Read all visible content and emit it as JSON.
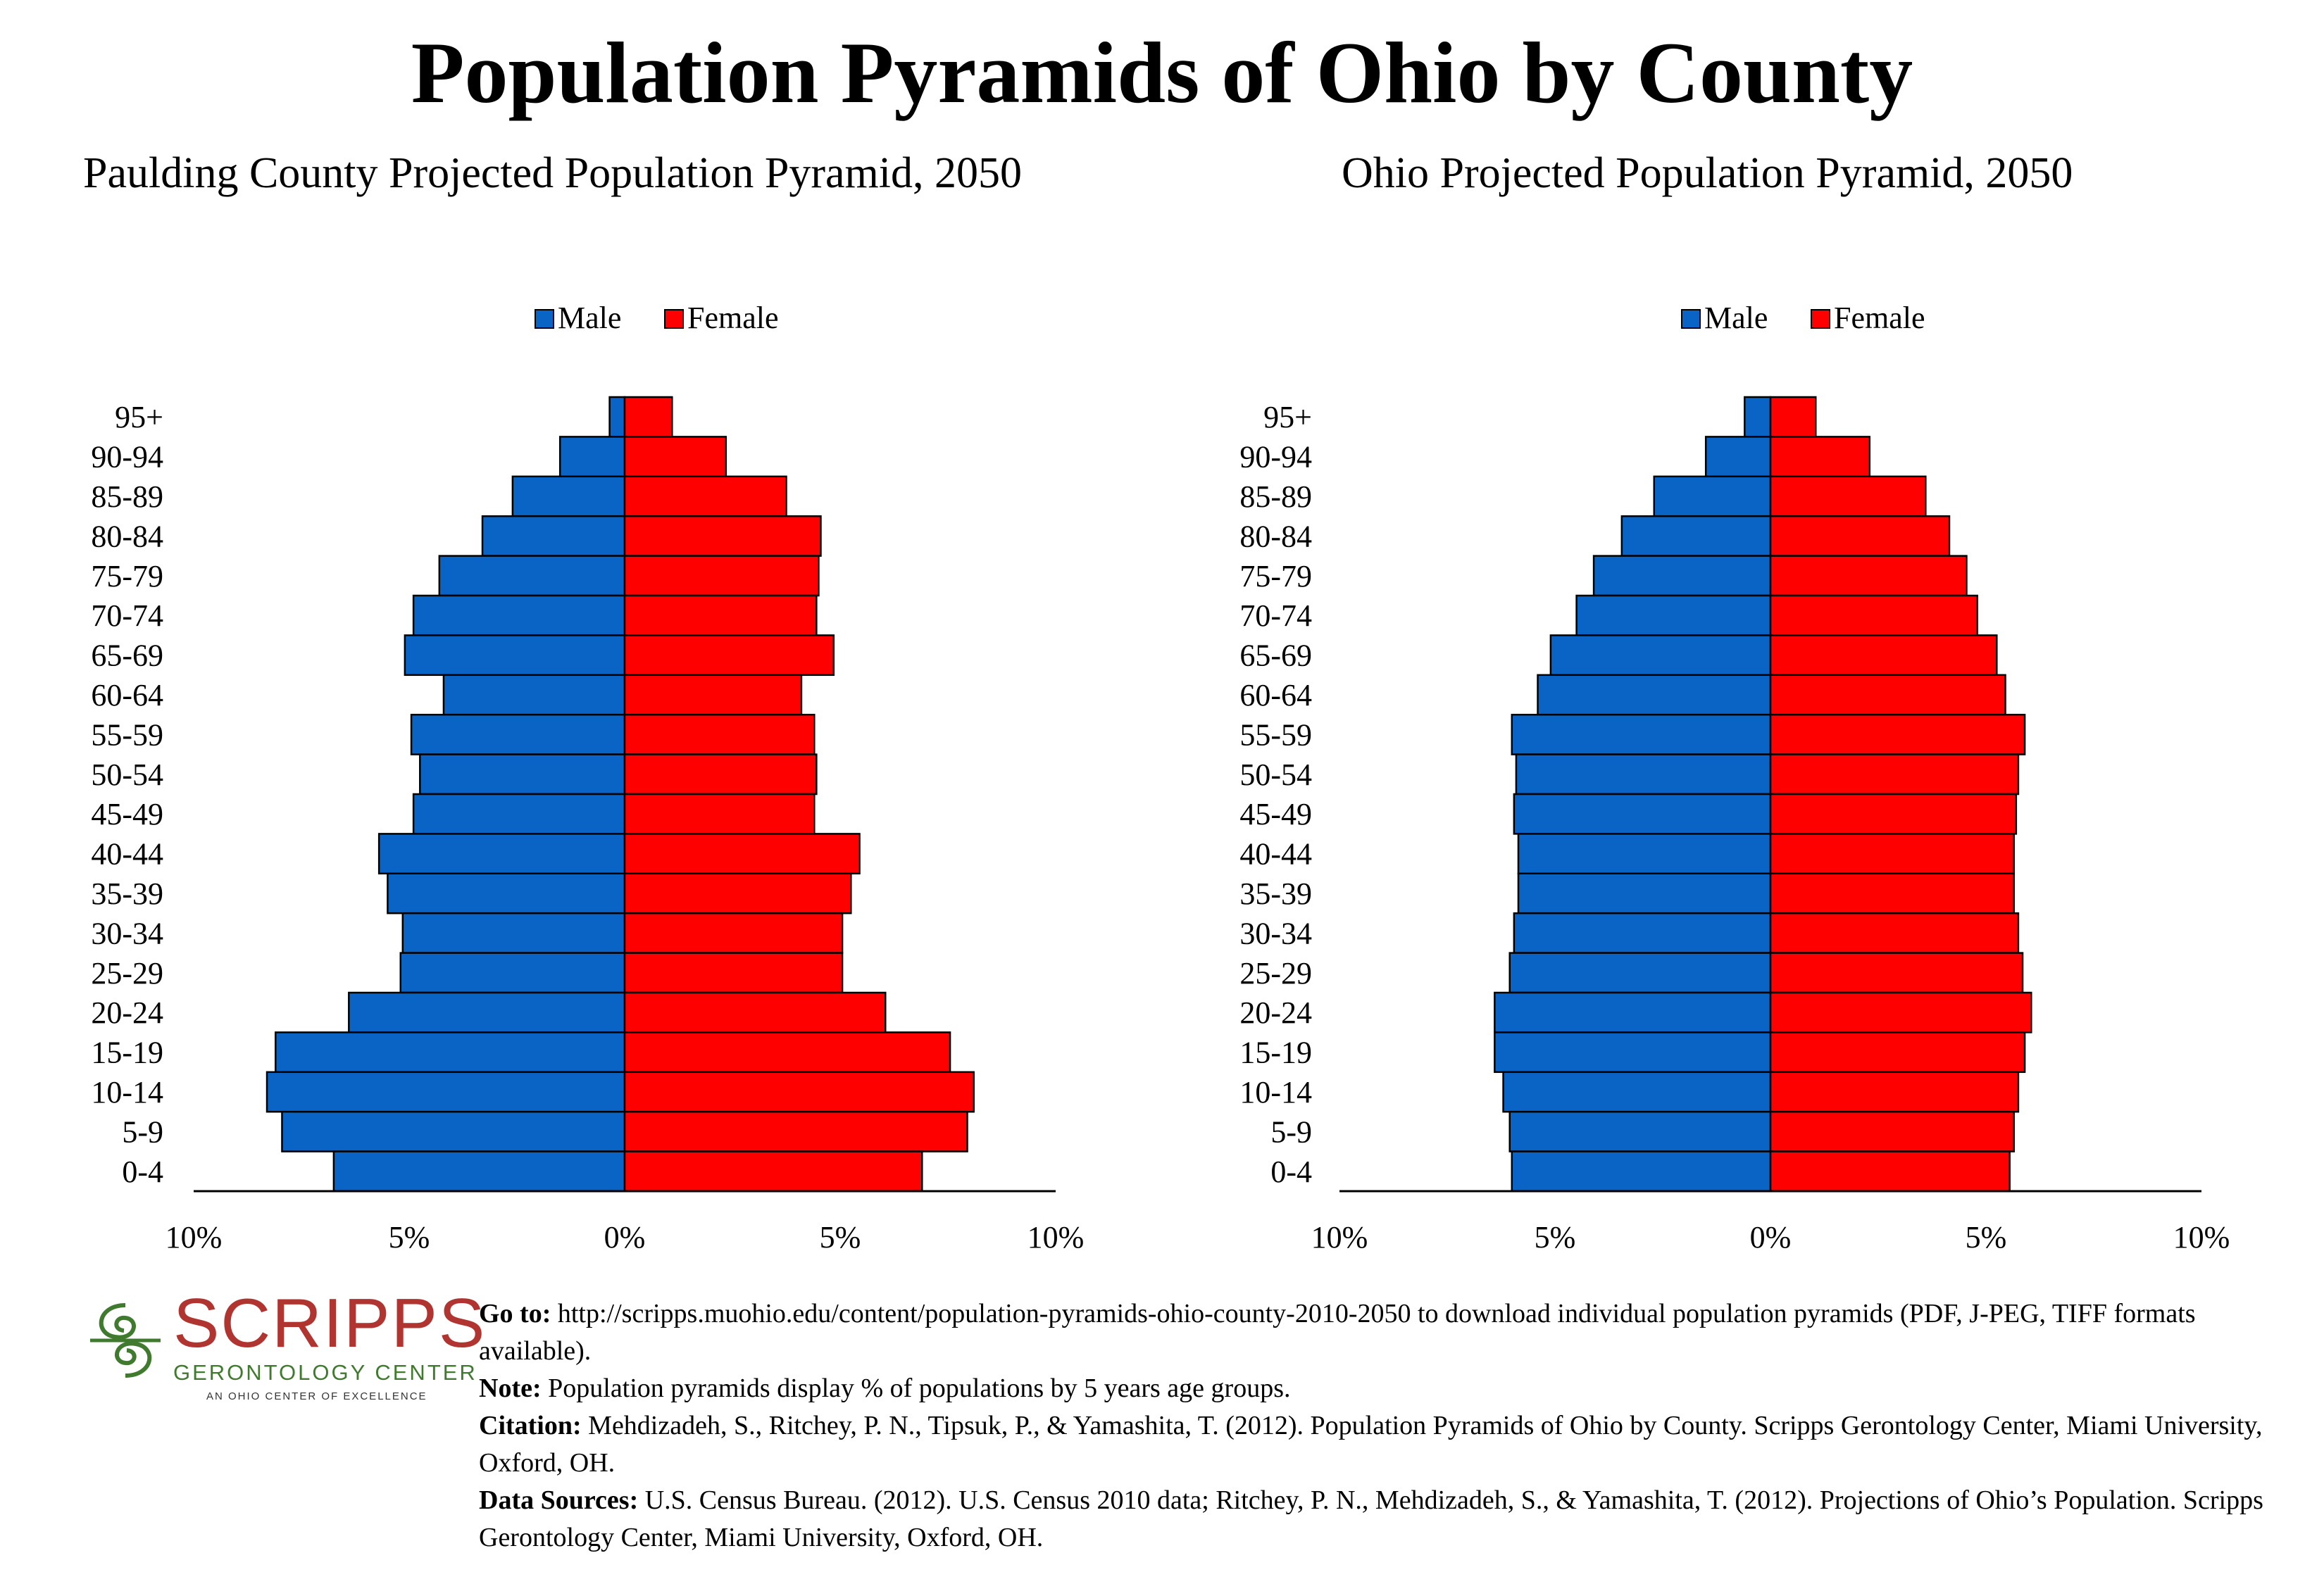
{
  "header": {
    "title": "Population Pyramids of Ohio by County"
  },
  "legend": {
    "male_label": "Male",
    "female_label": "Female"
  },
  "colors": {
    "male": "#0a64c6",
    "female": "#ff0000"
  },
  "chart_data": [
    {
      "type": "bar",
      "orientation": "horizontal",
      "subtype": "population-pyramid",
      "title": "Paulding County Projected Population Pyramid, 2050",
      "categories": [
        "95+",
        "90-94",
        "85-89",
        "80-84",
        "75-79",
        "70-74",
        "65-69",
        "60-64",
        "55-59",
        "50-54",
        "45-49",
        "40-44",
        "35-39",
        "30-34",
        "25-29",
        "20-24",
        "15-19",
        "10-14",
        "5-9",
        "0-4"
      ],
      "series": [
        {
          "name": "Male",
          "values": [
            0.35,
            1.5,
            2.6,
            3.3,
            4.3,
            4.9,
            5.1,
            4.2,
            4.95,
            4.75,
            4.9,
            5.7,
            5.5,
            5.15,
            5.2,
            6.4,
            8.1,
            8.3,
            7.95,
            6.75
          ]
        },
        {
          "name": "Female",
          "values": [
            1.1,
            2.35,
            3.75,
            4.55,
            4.5,
            4.45,
            4.85,
            4.1,
            4.4,
            4.45,
            4.4,
            5.45,
            5.25,
            5.05,
            5.05,
            6.05,
            7.55,
            8.1,
            7.95,
            6.9
          ]
        }
      ],
      "x_ticks": [
        "10%",
        "5%",
        "0%",
        "5%",
        "10%"
      ],
      "xlim": [
        -10,
        10
      ],
      "legend_position": "top",
      "grid": false
    },
    {
      "type": "bar",
      "orientation": "horizontal",
      "subtype": "population-pyramid",
      "title": "Ohio Projected Population Pyramid, 2050",
      "categories": [
        "95+",
        "90-94",
        "85-89",
        "80-84",
        "75-79",
        "70-74",
        "65-69",
        "60-64",
        "55-59",
        "50-54",
        "45-49",
        "40-44",
        "35-39",
        "30-34",
        "25-29",
        "20-24",
        "15-19",
        "10-14",
        "5-9",
        "0-4"
      ],
      "series": [
        {
          "name": "Male",
          "values": [
            0.6,
            1.5,
            2.7,
            3.45,
            4.1,
            4.5,
            5.1,
            5.4,
            6.0,
            5.9,
            5.95,
            5.85,
            5.85,
            5.95,
            6.05,
            6.4,
            6.4,
            6.2,
            6.05,
            6.0
          ]
        },
        {
          "name": "Female",
          "values": [
            1.05,
            2.3,
            3.6,
            4.15,
            4.55,
            4.8,
            5.25,
            5.45,
            5.9,
            5.75,
            5.7,
            5.65,
            5.65,
            5.75,
            5.85,
            6.05,
            5.9,
            5.75,
            5.65,
            5.55
          ]
        }
      ],
      "x_ticks": [
        "10%",
        "5%",
        "0%",
        "5%",
        "10%"
      ],
      "xlim": [
        -10,
        10
      ],
      "legend_position": "top",
      "grid": false
    }
  ],
  "logo": {
    "word": "SCRIPPS",
    "subtitle": "GERONTOLOGY CENTER",
    "tagline": "AN OHIO CENTER OF EXCELLENCE"
  },
  "footer": {
    "goto_label": "Go to:",
    "goto_text": " http://scripps.muohio.edu/content/population-pyramids-ohio-county-2010-2050 to download individual population pyramids (PDF, J-PEG, TIFF formats available).",
    "note_label": "Note:",
    "note_text": " Population pyramids display % of populations by 5 years age groups.",
    "citation_label": "Citation:",
    "citation_text": " Mehdizadeh, S., Ritchey, P. N., Tipsuk, P., & Yamashita, T. (2012). Population Pyramids of Ohio by County. Scripps Gerontology Center, Miami University, Oxford, OH.",
    "sources_label": "Data Sources:",
    "sources_text": " U.S. Census Bureau. (2012). U.S. Census 2010 data; Ritchey, P. N., Mehdizadeh, S., & Yamashita, T. (2012). Projections of Ohio’s Population. Scripps Gerontology Center, Miami University, Oxford, OH."
  }
}
